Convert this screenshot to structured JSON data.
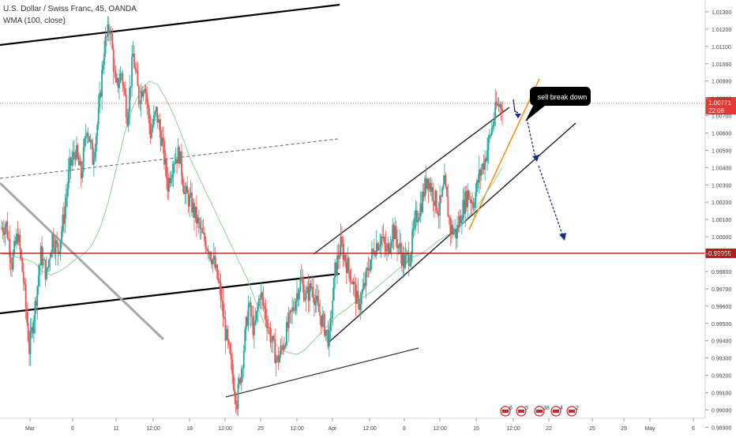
{
  "header": {
    "title": "U.S. Dollar / Swiss Franc, 45, OANDA",
    "indicator": "WMA (100, close)"
  },
  "chart_data": {
    "type": "candlestick",
    "ylim": [
      0.9897,
      1.0135
    ],
    "price_ticks": [
      "1.01300",
      "1.01200",
      "1.01100",
      "1.01000",
      "1.00900",
      "1.00800",
      "1.00700",
      "1.00600",
      "1.00500",
      "1.00400",
      "1.00300",
      "1.00200",
      "1.00100",
      "1.00000",
      "0.99900",
      "0.99800",
      "0.99700",
      "0.99600",
      "0.99500",
      "0.99400",
      "0.99300",
      "0.99200",
      "0.99100",
      "0.99000",
      "0.98900"
    ],
    "time_ticks": [
      "Mar",
      "6",
      "11",
      "12:00",
      "18",
      "12:00",
      "25",
      "12:00",
      "Apr",
      "12:00",
      "8",
      "12:00",
      "15",
      "12:00",
      "22",
      "25",
      "29",
      "May",
      "6"
    ],
    "current_price": {
      "value": "1.00771",
      "countdown": "22:08",
      "y": 1.00771
    },
    "support_level": {
      "value": "0.99905",
      "y": 0.99905
    },
    "annotation": "sell break down",
    "price_path": [
      1.0005,
      1.0007,
      0.9985,
      1.0002,
      0.9975,
      0.9935,
      0.996,
      0.999,
      0.9978,
      1.0,
      0.9992,
      1.0012,
      1.004,
      1.005,
      1.0035,
      1.0065,
      1.0045,
      1.007,
      1.011,
      1.0122,
      1.0085,
      1.0095,
      1.007,
      1.0105,
      1.008,
      1.009,
      1.006,
      1.0072,
      1.0055,
      1.003,
      1.0045,
      1.0048,
      1.0025,
      1.002,
      1.001,
      1.0,
      0.9995,
      0.9985,
      0.997,
      0.9945,
      0.9925,
      0.9905,
      0.993,
      0.996,
      0.9945,
      0.9968,
      0.9955,
      0.994,
      0.9928,
      0.9938,
      0.995,
      0.9962,
      0.9975,
      0.9965,
      0.9972,
      0.9958,
      0.995,
      0.994,
      0.998,
      0.9995,
      0.9985,
      0.9975,
      0.996,
      0.997,
      0.9985,
      0.9995,
      1.0,
      0.999,
      1.0005,
      0.9995,
      0.9985,
      0.999,
      1.001,
      1.002,
      1.0035,
      1.0025,
      1.0015,
      1.003,
      1.0005,
      1.0002,
      1.0015,
      1.0025,
      1.002,
      1.0035,
      1.0045,
      1.006,
      1.0075,
      1.0077
    ],
    "wma_path": [
      0.999,
      0.999,
      0.9988,
      0.9987,
      0.9985,
      0.998,
      0.9978,
      0.998,
      0.9983,
      0.9987,
      0.999,
      0.9995,
      1.0005,
      1.002,
      1.004,
      1.006,
      1.0075,
      1.0085,
      1.009,
      1.0088,
      1.008,
      1.007,
      1.0058,
      1.0045,
      1.0035,
      1.0025,
      1.0015,
      1.0005,
      0.9995,
      0.9985,
      0.9975,
      0.9962,
      0.995,
      0.994,
      0.9935,
      0.9933,
      0.9932,
      0.9935,
      0.994,
      0.9945,
      0.995,
      0.9955,
      0.9958,
      0.9962,
      0.9965,
      0.9968,
      0.9972,
      0.9976,
      0.998,
      0.9984,
      0.9988,
      0.999,
      0.9993,
      0.9997,
      1.0,
      1.0003,
      1.0007,
      1.0012,
      1.0018,
      1.0025,
      1.0032,
      1.004
    ],
    "colors": {
      "up": "#26a69a",
      "down": "#ef5350",
      "wma": "#8fd19e",
      "trendline": "#000000",
      "channel": "#222222",
      "orange": "#f7931a",
      "arrow": "#1a2a8a",
      "support": "#b71c1c",
      "current": "#e53935",
      "label_bg": "#000000"
    },
    "events": [
      "6",
      "5",
      "38",
      "4",
      "2"
    ]
  }
}
